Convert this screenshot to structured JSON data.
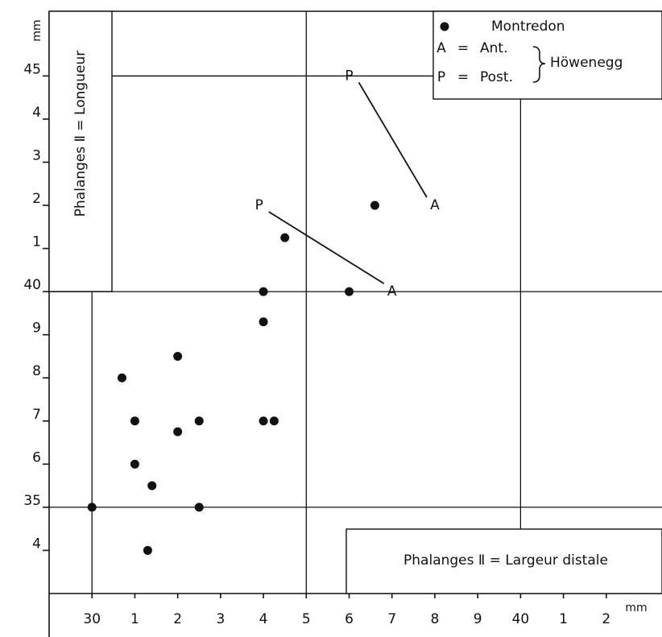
{
  "chart_data": {
    "type": "scatter",
    "x_label": "Phalanges Ⅱ = Largeur distale",
    "y_label": "Phalanges Ⅱ = Longueur",
    "x_unit": "mm",
    "y_unit": "mm",
    "xlim": [
      29,
      43.3
    ],
    "ylim": [
      33,
      46.5
    ],
    "xticks": [
      30,
      {
        "value": 31,
        "label": "1"
      },
      {
        "value": 32,
        "label": "2"
      },
      {
        "value": 33,
        "label": "3"
      },
      {
        "value": 34,
        "label": "4"
      },
      {
        "value": 35,
        "label": "5"
      },
      {
        "value": 36,
        "label": "6"
      },
      {
        "value": 37,
        "label": "7"
      },
      {
        "value": 38,
        "label": "8"
      },
      {
        "value": 39,
        "label": "9"
      },
      40,
      {
        "value": 41,
        "label": "1"
      },
      {
        "value": 42,
        "label": "2"
      }
    ],
    "yticks": [
      {
        "value": 34,
        "label": "4"
      },
      35,
      {
        "value": 36,
        "label": "6"
      },
      {
        "value": 37,
        "label": "7"
      },
      {
        "value": 38,
        "label": "8"
      },
      {
        "value": 39,
        "label": "9"
      },
      40,
      {
        "value": 41,
        "label": "1"
      },
      {
        "value": 42,
        "label": "2"
      },
      {
        "value": 43,
        "label": "3"
      },
      {
        "value": 44,
        "label": "4"
      },
      45
    ],
    "xgrid": [
      30,
      35,
      40
    ],
    "ygrid": [
      35,
      40,
      45
    ],
    "legend_separator": "=",
    "legend_group": "Höwenegg",
    "series": [
      {
        "name": "Montredon",
        "marker": "●",
        "color": "#111111",
        "x": [
          30,
          30.7,
          31,
          31,
          31.4,
          31.3,
          32,
          32,
          32.5,
          32.5,
          34,
          34,
          34,
          34.25,
          34.5,
          36,
          36.6
        ],
        "values": [
          35,
          38,
          37,
          36,
          35.5,
          34,
          38.5,
          36.75,
          37,
          35,
          40,
          39.3,
          37,
          37,
          41.25,
          40,
          42
        ]
      },
      {
        "name": "Ant.",
        "marker": "A",
        "color": "#111111",
        "x": [
          38,
          37
        ],
        "values": [
          42,
          40
        ]
      },
      {
        "name": "Post.",
        "marker": "P",
        "color": "#111111",
        "x": [
          36,
          33.9
        ],
        "values": [
          45,
          42
        ]
      }
    ]
  }
}
